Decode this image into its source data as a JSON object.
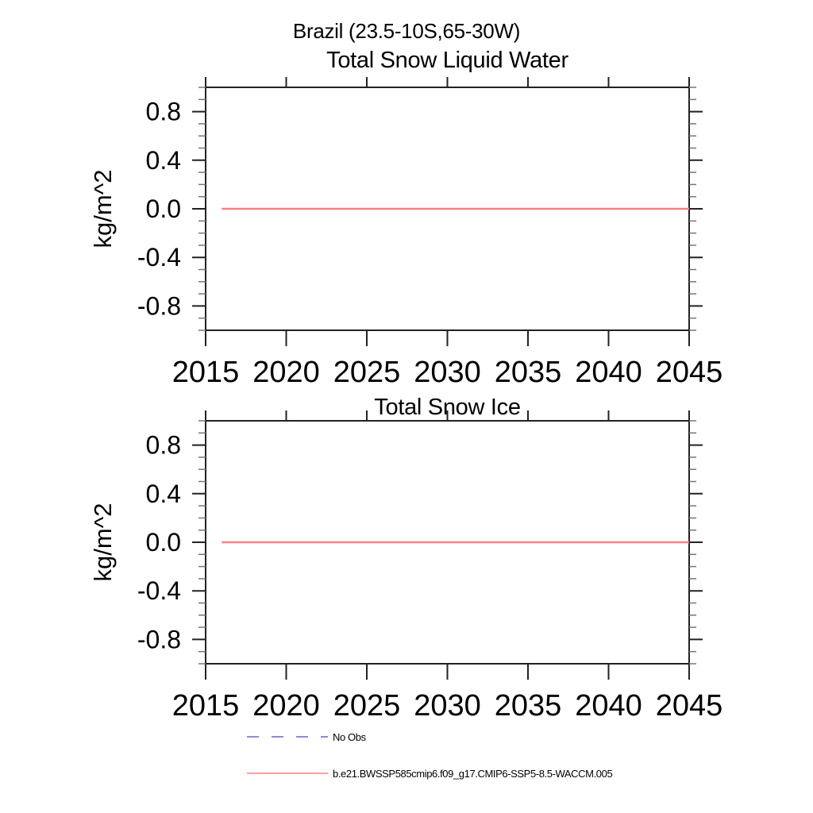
{
  "header": {
    "title": "Brazil (23.5-10S,65-30W)"
  },
  "chart_data": [
    {
      "type": "line",
      "title": "Total Snow Liquid Water",
      "ylabel": "kg/m^2",
      "xlabel": "",
      "xlim": [
        2015,
        2045
      ],
      "ylim": [
        -1.0,
        1.0
      ],
      "xtick_values": [
        2015,
        2020,
        2025,
        2030,
        2035,
        2040,
        2045
      ],
      "xtick_labels": [
        "2015",
        "2020",
        "2025",
        "2030",
        "2035",
        "2040",
        "2045"
      ],
      "ytick_values": [
        0.8,
        0.4,
        0.0,
        -0.4,
        -0.8
      ],
      "ytick_labels": [
        "0.8",
        "0.4",
        "0.0",
        "-0.4",
        "-0.8"
      ],
      "ytick_minor_step": 0.1,
      "grid": false,
      "series": [
        {
          "name": "b.e21.BWSSP585cmip6.f09_g17.CMIP6-SSP5-8.5-WACCM.005",
          "color": "#ff8080",
          "x": [
            2016,
            2045
          ],
          "y": [
            0.0,
            0.0
          ]
        }
      ]
    },
    {
      "type": "line",
      "title": "Total Snow Ice",
      "ylabel": "kg/m^2",
      "xlabel": "",
      "xlim": [
        2015,
        2045
      ],
      "ylim": [
        -1.0,
        1.0
      ],
      "xtick_values": [
        2015,
        2020,
        2025,
        2030,
        2035,
        2040,
        2045
      ],
      "xtick_labels": [
        "2015",
        "2020",
        "2025",
        "2030",
        "2035",
        "2040",
        "2045"
      ],
      "ytick_values": [
        0.8,
        0.4,
        0.0,
        -0.4,
        -0.8
      ],
      "ytick_labels": [
        "0.8",
        "0.4",
        "0.0",
        "-0.4",
        "-0.8"
      ],
      "ytick_minor_step": 0.1,
      "grid": false,
      "series": [
        {
          "name": "b.e21.BWSSP585cmip6.f09_g17.CMIP6-SSP5-8.5-WACCM.005",
          "color": "#ff8080",
          "x": [
            2016,
            2045
          ],
          "y": [
            0.0,
            0.0
          ]
        }
      ]
    }
  ],
  "legend": {
    "position": "bottom",
    "items": [
      {
        "label": "No Obs",
        "color": "#6666cc",
        "line_style": "dashed"
      },
      {
        "label": "b.e21.BWSSP585cmip6.f09_g17.CMIP6-SSP5-8.5-WACCM.005",
        "color": "#ff8080",
        "line_style": "solid"
      }
    ]
  },
  "style": {
    "axis_color": "#222222",
    "minor_tick_color": "#777777",
    "text_color": "#000000",
    "background": "#ffffff"
  }
}
